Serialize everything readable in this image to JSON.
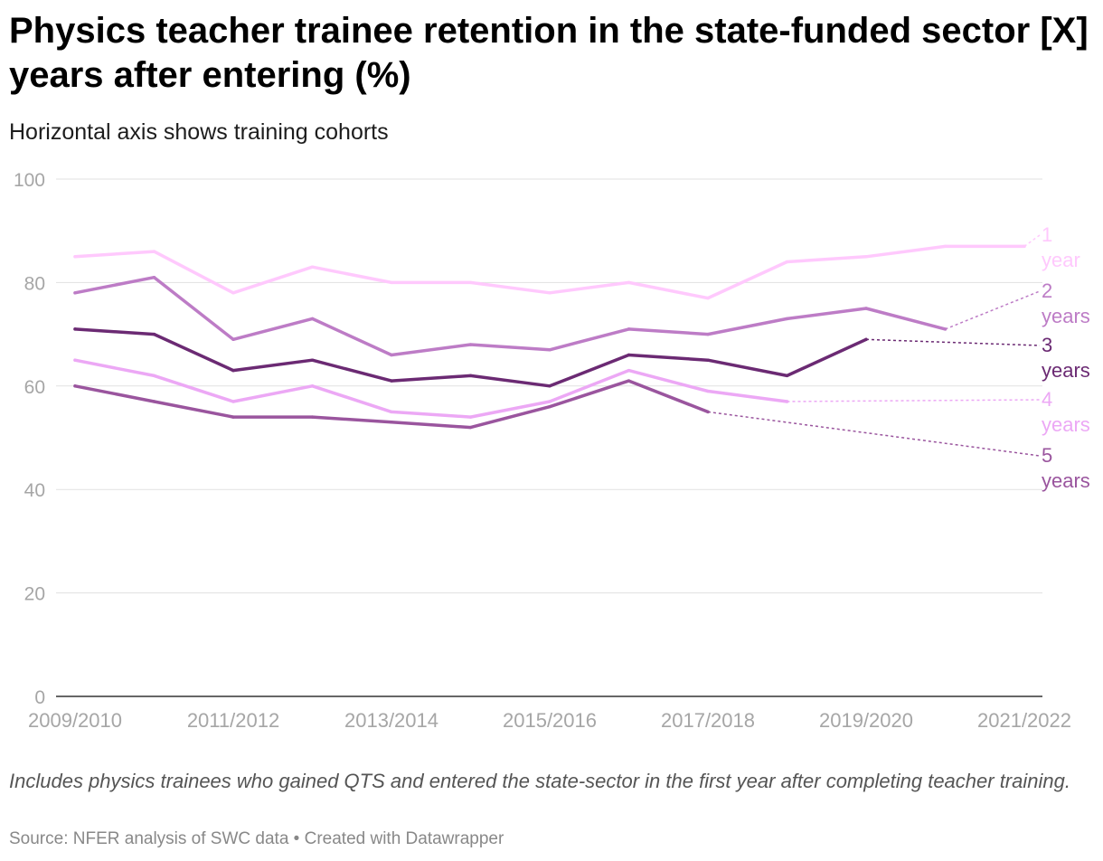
{
  "header": {
    "title": "Physics teacher trainee retention in the state-funded sector [X] years after entering (%)",
    "subtitle": "Horizontal axis shows training cohorts"
  },
  "notes": "Includes physics trainees who gained QTS and entered the state-sector in the first year after completing teacher training.",
  "footer": {
    "source": "Source: NFER analysis of SWC data",
    "separator": " • ",
    "credit": "Created with Datawrapper"
  },
  "colors": {
    "grid": "#e1e1e1",
    "axis": "#333333",
    "tick_label": "#a6a6a6"
  },
  "chart_data": {
    "type": "line",
    "title": "Physics teacher trainee retention in the state-funded sector [X] years after entering (%)",
    "subtitle": "Horizontal axis shows training cohorts",
    "x": [
      "2009/2010",
      "2010/2011",
      "2011/2012",
      "2012/2013",
      "2013/2014",
      "2014/2015",
      "2015/2016",
      "2016/2017",
      "2017/2018",
      "2018/2019",
      "2019/2020",
      "2020/2021",
      "2021/2022"
    ],
    "x_tick_labels": [
      "2009/2010",
      "2011/2012",
      "2013/2014",
      "2015/2016",
      "2017/2018",
      "2019/2020",
      "2021/2022"
    ],
    "y_ticks": [
      0,
      20,
      40,
      60,
      80,
      100
    ],
    "ylim": [
      0,
      100
    ],
    "xlabel": "",
    "ylabel": "",
    "grid": true,
    "legend": "direct labels at right end of lines",
    "series": [
      {
        "name": "1 year",
        "color": "#ffc9fd",
        "values": [
          85,
          86,
          78,
          83,
          80,
          80,
          78,
          80,
          77,
          84,
          85,
          87,
          87
        ]
      },
      {
        "name": "2 years",
        "color": "#bd7cc6",
        "values": [
          78,
          81,
          69,
          73,
          66,
          68,
          67,
          71,
          70,
          73,
          75,
          71,
          null
        ]
      },
      {
        "name": "3 years",
        "color": "#6b2a73",
        "values": [
          71,
          70,
          63,
          65,
          61,
          62,
          60,
          66,
          65,
          62,
          69,
          null,
          null
        ]
      },
      {
        "name": "4 years",
        "color": "#eca8f5",
        "values": [
          65,
          62,
          57,
          60,
          55,
          54,
          57,
          63,
          59,
          57,
          null,
          null,
          null
        ]
      },
      {
        "name": "5 years",
        "color": "#9a559e",
        "values": [
          60,
          57,
          54,
          54,
          53,
          52,
          56,
          61,
          55,
          null,
          null,
          null,
          null
        ]
      }
    ]
  }
}
